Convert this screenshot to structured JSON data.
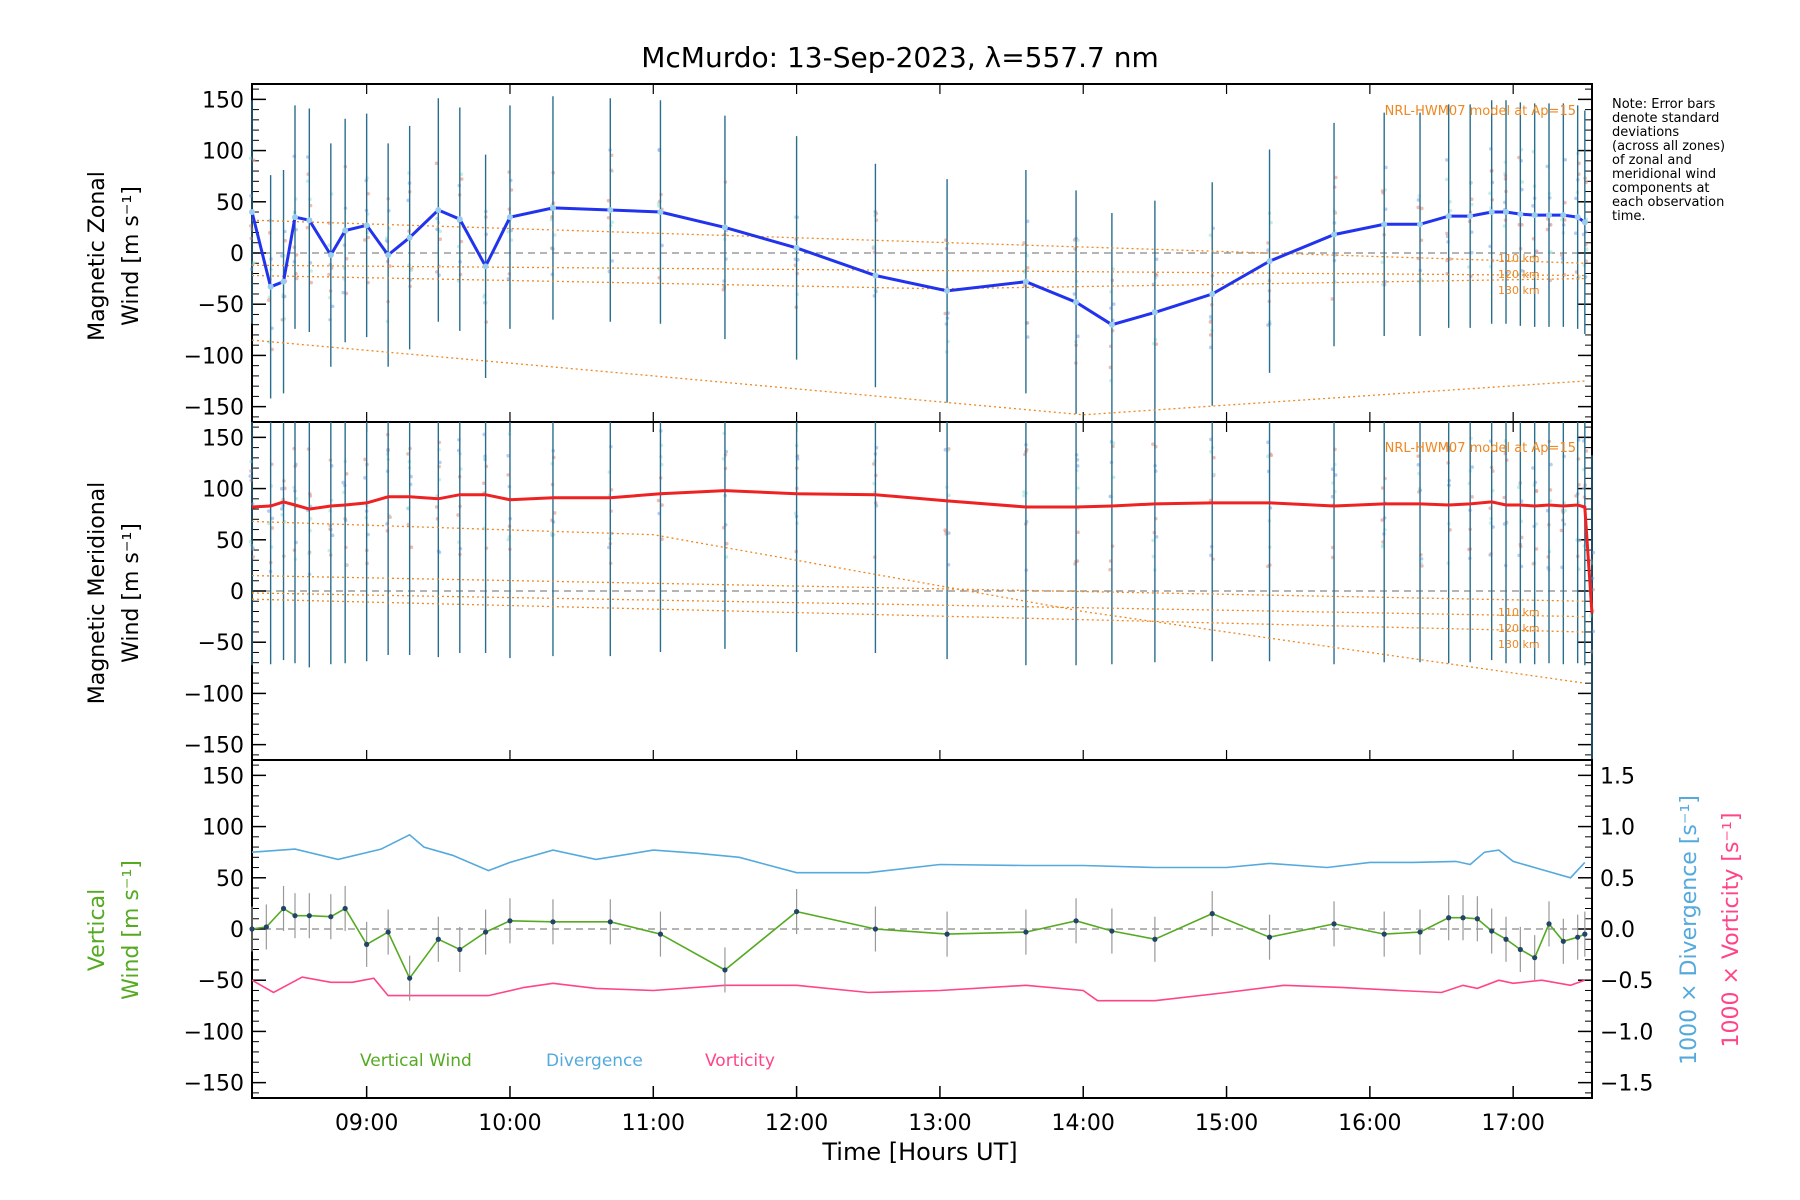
{
  "title": "McMurdo: 13-Sep-2023, λ=557.7 nm",
  "note": [
    "Note: Error bars",
    "denote standard",
    "deviations",
    "(across all zones)",
    "of zonal and",
    "meridional wind",
    "components at",
    "each observation",
    "time."
  ],
  "colors": {
    "zonal": "#2233ee",
    "meridional": "#ee2222",
    "vertical": "#55aa22",
    "divergence": "#55aadd",
    "vorticity": "#ff4488",
    "model": "#ee8822",
    "errorbar": "#2a6e8e",
    "zero_line": "#888888"
  },
  "chart_data": [
    {
      "type": "line",
      "panel": "zonal",
      "ylabel_line1": "Magnetic Zonal",
      "ylabel_line2": "Wind [m s⁻¹]",
      "ylim": [
        -165,
        165
      ],
      "yticks": [
        -150,
        -100,
        -50,
        0,
        50,
        100,
        150
      ],
      "model_label": "NRL-HWM07 model at Ap=15",
      "altitude_labels": [
        "110 km",
        "120 km",
        "130 km"
      ],
      "series": [
        {
          "name": "Magnetic Zonal Wind",
          "x": [
            8.2,
            8.33,
            8.42,
            8.5,
            8.6,
            8.75,
            8.85,
            9.0,
            9.15,
            9.3,
            9.5,
            9.65,
            9.83,
            10.0,
            10.3,
            10.7,
            11.05,
            11.5,
            12.0,
            12.55,
            13.05,
            13.6,
            13.95,
            14.2,
            14.5,
            14.9,
            15.3,
            15.75,
            16.1,
            16.35,
            16.55,
            16.7,
            16.85,
            16.95,
            17.05,
            17.15,
            17.25,
            17.35,
            17.45,
            17.5
          ],
          "values": [
            40,
            -33,
            -28,
            35,
            32,
            -2,
            22,
            27,
            -2,
            15,
            42,
            33,
            -13,
            35,
            44,
            42,
            40,
            25,
            5,
            -22,
            -37,
            -28,
            -48,
            -70,
            -58,
            -40,
            -8,
            18,
            28,
            28,
            36,
            36,
            40,
            40,
            38,
            37,
            37,
            37,
            35,
            30
          ]
        }
      ],
      "models": [
        {
          "name": "110 km",
          "x": [
            8.2,
            17.5
          ],
          "values": [
            32,
            -10
          ]
        },
        {
          "name": "120 km",
          "x": [
            8.2,
            17.5
          ],
          "values": [
            -12,
            -22
          ]
        },
        {
          "name": "130 km",
          "x": [
            8.2,
            13.0,
            17.5
          ],
          "values": [
            -22,
            -35,
            -25
          ]
        },
        {
          "name": "lower",
          "x": [
            8.2,
            11.0,
            14.0,
            17.5
          ],
          "values": [
            -85,
            -120,
            -158,
            -125
          ]
        }
      ]
    },
    {
      "type": "line",
      "panel": "meridional",
      "ylabel_line1": "Magnetic Meridional",
      "ylabel_line2": "Wind [m s⁻¹]",
      "ylim": [
        -165,
        165
      ],
      "yticks": [
        -150,
        -100,
        -50,
        0,
        50,
        100,
        150
      ],
      "model_label": "NRL-HWM07 model at Ap=15",
      "altitude_labels": [
        "110 km",
        "120 km",
        "130 km"
      ],
      "series": [
        {
          "name": "Magnetic Meridional Wind",
          "x": [
            8.2,
            8.33,
            8.42,
            8.5,
            8.6,
            8.75,
            8.85,
            9.0,
            9.15,
            9.3,
            9.5,
            9.65,
            9.83,
            10.0,
            10.3,
            10.7,
            11.05,
            11.5,
            12.0,
            12.55,
            13.05,
            13.6,
            13.95,
            14.2,
            14.5,
            14.9,
            15.3,
            15.75,
            16.1,
            16.35,
            16.55,
            16.7,
            16.85,
            16.95,
            17.05,
            17.15,
            17.25,
            17.35,
            17.45,
            17.5,
            17.55
          ],
          "values": [
            82,
            83,
            87,
            84,
            80,
            83,
            84,
            86,
            92,
            92,
            90,
            94,
            94,
            89,
            91,
            91,
            95,
            98,
            95,
            94,
            88,
            82,
            82,
            83,
            85,
            86,
            86,
            83,
            85,
            85,
            84,
            85,
            87,
            84,
            84,
            83,
            84,
            83,
            84,
            82,
            -22
          ]
        }
      ],
      "models": [
        {
          "name": "110 km",
          "x": [
            8.2,
            17.5
          ],
          "values": [
            15,
            -10
          ]
        },
        {
          "name": "120 km",
          "x": [
            8.2,
            17.5
          ],
          "values": [
            -2,
            -25
          ]
        },
        {
          "name": "130 km",
          "x": [
            8.2,
            17.5
          ],
          "values": [
            -8,
            -40
          ]
        },
        {
          "name": "upper",
          "x": [
            8.2,
            11.0,
            14.0,
            17.5
          ],
          "values": [
            68,
            55,
            -20,
            -90
          ]
        }
      ]
    },
    {
      "type": "line",
      "panel": "vertical",
      "ylabel_line1": "Vertical",
      "ylabel_line2": "Wind [m s⁻¹]",
      "ylim": [
        -165,
        165
      ],
      "yticks": [
        -150,
        -100,
        -50,
        0,
        50,
        100,
        150
      ],
      "xlabel": "Time [Hours UT]",
      "xlim": [
        8.2,
        17.55
      ],
      "xticks": [
        9,
        10,
        11,
        12,
        13,
        14,
        15,
        16,
        17
      ],
      "xtick_labels": [
        "09:00",
        "10:00",
        "11:00",
        "12:00",
        "13:00",
        "14:00",
        "15:00",
        "16:00",
        "17:00"
      ],
      "y2label_divergence": "1000 × Divergence [s⁻¹]",
      "y2label_vorticity": "1000 × Vorticity [s⁻¹]",
      "y2lim": [
        -1.65,
        1.65
      ],
      "y2ticks": [
        -1.5,
        -1.0,
        -0.5,
        0.0,
        0.5,
        1.0,
        1.5
      ],
      "y2tick_labels": [
        "−1.5",
        "−1.0",
        "−0.5",
        "0.0",
        "0.5",
        "1.0",
        "1.5"
      ],
      "legend": [
        "Vertical Wind",
        "Divergence",
        "Vorticity"
      ],
      "series": [
        {
          "name": "Vertical Wind",
          "axis": "left",
          "x": [
            8.2,
            8.3,
            8.42,
            8.5,
            8.6,
            8.75,
            8.85,
            9.0,
            9.15,
            9.3,
            9.5,
            9.65,
            9.83,
            10.0,
            10.3,
            10.7,
            11.05,
            11.5,
            12.0,
            12.55,
            13.05,
            13.6,
            13.95,
            14.2,
            14.5,
            14.9,
            15.3,
            15.75,
            16.1,
            16.35,
            16.55,
            16.65,
            16.75,
            16.85,
            16.95,
            17.05,
            17.15,
            17.25,
            17.35,
            17.45,
            17.5
          ],
          "values": [
            0,
            2,
            20,
            13,
            13,
            12,
            20,
            -15,
            -3,
            -48,
            -10,
            -20,
            -3,
            8,
            7,
            7,
            -5,
            -40,
            17,
            0,
            -5,
            -3,
            8,
            -2,
            -10,
            15,
            -8,
            5,
            -5,
            -3,
            11,
            11,
            10,
            -2,
            -10,
            -20,
            -28,
            5,
            -12,
            -8,
            -5
          ]
        },
        {
          "name": "Divergence",
          "axis": "right",
          "x": [
            8.2,
            8.5,
            8.8,
            9.1,
            9.3,
            9.4,
            9.6,
            9.85,
            10.0,
            10.3,
            10.6,
            11.0,
            11.3,
            11.6,
            12.0,
            12.5,
            13.0,
            13.6,
            14.0,
            14.5,
            15.0,
            15.3,
            15.7,
            16.0,
            16.3,
            16.6,
            16.7,
            16.8,
            16.9,
            17.0,
            17.2,
            17.4,
            17.5
          ],
          "values": [
            0.75,
            0.78,
            0.68,
            0.78,
            0.92,
            0.8,
            0.72,
            0.57,
            0.65,
            0.77,
            0.68,
            0.77,
            0.74,
            0.7,
            0.55,
            0.55,
            0.63,
            0.62,
            0.62,
            0.6,
            0.6,
            0.64,
            0.6,
            0.65,
            0.65,
            0.66,
            0.63,
            0.75,
            0.77,
            0.66,
            0.58,
            0.5,
            0.65
          ]
        },
        {
          "name": "Vorticity",
          "axis": "right",
          "x": [
            8.2,
            8.35,
            8.55,
            8.75,
            8.9,
            9.05,
            9.15,
            9.35,
            9.6,
            9.85,
            10.1,
            10.3,
            10.6,
            11.0,
            11.5,
            12.0,
            12.5,
            13.0,
            13.6,
            14.0,
            14.1,
            14.5,
            15.0,
            15.4,
            15.8,
            16.2,
            16.5,
            16.65,
            16.75,
            16.9,
            17.0,
            17.2,
            17.4,
            17.5
          ],
          "values": [
            -0.5,
            -0.62,
            -0.47,
            -0.52,
            -0.52,
            -0.48,
            -0.65,
            -0.65,
            -0.65,
            -0.65,
            -0.57,
            -0.53,
            -0.58,
            -0.6,
            -0.55,
            -0.55,
            -0.62,
            -0.6,
            -0.55,
            -0.6,
            -0.7,
            -0.7,
            -0.62,
            -0.55,
            -0.57,
            -0.6,
            -0.62,
            -0.55,
            -0.58,
            -0.5,
            -0.53,
            -0.5,
            -0.55,
            -0.5
          ]
        }
      ]
    }
  ]
}
